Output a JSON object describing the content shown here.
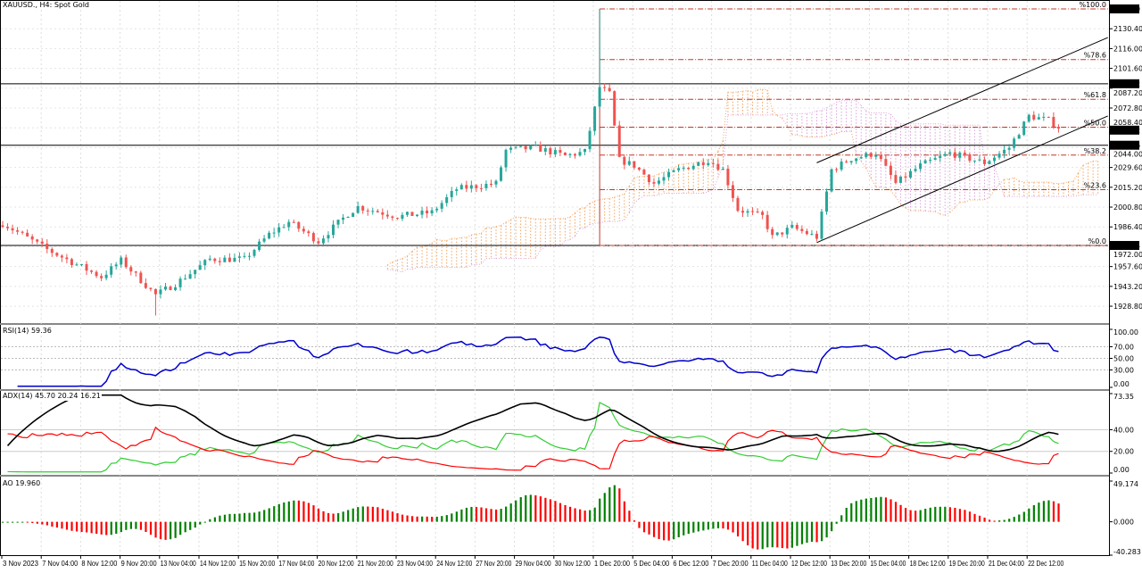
{
  "title": "XAUUSD., H4:  Spot Gold",
  "indicators": {
    "rsi_label": "RSI(14) 59.36",
    "adx_label": "ADX(14) 45.70 20.24 16.21",
    "ao_label": "AO 19.960"
  },
  "colors": {
    "bull": "#26a69a",
    "bear": "#ef5350",
    "fib": "#c0392b",
    "cloud_up": "#f4a460",
    "cloud_down": "#dda0dd",
    "rsi": "#0000cd",
    "adx": "#000000",
    "plus_di": "#32cd32",
    "minus_di": "#ff0000",
    "ao_up": "#008000",
    "ao_down": "#ff0000"
  },
  "chart_data": {
    "type": "candlestick",
    "symbol": "XAUUSD.",
    "timeframe": "H4",
    "ylim": [
      1914.4,
      2150
    ],
    "price_ticks": [
      "2130.40",
      "2116.00",
      "2101.60",
      "2087.20",
      "2072.80",
      "2058.40",
      "2044.00",
      "2029.60",
      "2015.20",
      "2000.80",
      "1986.40",
      "1972.00",
      "1957.60",
      "1943.20",
      "1928.80"
    ],
    "price_tags": [
      "2144.79",
      "2090.42",
      "2056.72",
      "2045.76",
      "1972.94"
    ],
    "horizontal_levels": [
      2090.42,
      2045.76,
      1972.94
    ],
    "current_price": 2056.72,
    "x_labels": [
      "3 Nov 2023",
      "7 Nov 04:00",
      "8 Nov 12:00",
      "9 Nov 20:00",
      "13 Nov 04:00",
      "14 Nov 12:00",
      "15 Nov 20:00",
      "17 Nov 04:00",
      "20 Nov 12:00",
      "21 Nov 20:00",
      "23 Nov 04:00",
      "24 Nov 12:00",
      "27 Nov 20:00",
      "29 Nov 04:00",
      "30 Nov 12:00",
      "1 Dec 20:00",
      "5 Dec 04:00",
      "6 Dec 12:00",
      "7 Dec 20:00",
      "11 Dec 04:00",
      "12 Dec 12:00",
      "13 Dec 20:00",
      "15 Dec 04:00",
      "18 Dec 12:00",
      "19 Dec 20:00",
      "21 Dec 04:00",
      "22 Dec 12:00"
    ],
    "bars_per_label": 8,
    "bar_count": 215,
    "price_path": [
      [
        0,
        1989
      ],
      [
        9,
        1970
      ],
      [
        20,
        1950
      ],
      [
        24,
        1962
      ],
      [
        31,
        1937
      ],
      [
        35,
        1945
      ],
      [
        42,
        1963
      ],
      [
        49,
        1963
      ],
      [
        54,
        1981
      ],
      [
        58,
        1990
      ],
      [
        64,
        1976
      ],
      [
        70,
        1996
      ],
      [
        72,
        2001
      ],
      [
        80,
        1994
      ],
      [
        87,
        1997
      ],
      [
        92,
        2014
      ],
      [
        100,
        2018
      ],
      [
        102,
        2042
      ],
      [
        108,
        2044
      ],
      [
        114,
        2038
      ],
      [
        118,
        2041
      ],
      [
        121,
        2088
      ],
      [
        123,
        2083
      ],
      [
        125,
        2035
      ],
      [
        128,
        2031
      ],
      [
        132,
        2018
      ],
      [
        137,
        2028
      ],
      [
        143,
        2035
      ],
      [
        146,
        2028
      ],
      [
        149,
        1999
      ],
      [
        154,
        1994
      ],
      [
        156,
        1979
      ],
      [
        160,
        1986
      ],
      [
        165,
        1979
      ],
      [
        168,
        2028
      ],
      [
        172,
        2036
      ],
      [
        177,
        2040
      ],
      [
        181,
        2018
      ],
      [
        186,
        2031
      ],
      [
        192,
        2040
      ],
      [
        199,
        2033
      ],
      [
        204,
        2044
      ],
      [
        208,
        2067
      ],
      [
        212,
        2064
      ],
      [
        214,
        2059
      ]
    ],
    "spike_high": {
      "bar": 121,
      "price": 2144.79
    },
    "fibonacci": {
      "from": 1972.94,
      "to": 2144.79,
      "start_bar": 121,
      "levels": [
        {
          "ratio": 1.0,
          "label": "%100.0"
        },
        {
          "ratio": 0.786,
          "label": "%78.6"
        },
        {
          "ratio": 0.618,
          "label": "%61.8"
        },
        {
          "ratio": 0.5,
          "label": "%50.0"
        },
        {
          "ratio": 0.382,
          "label": "%38.2"
        },
        {
          "ratio": 0.236,
          "label": "%23.6"
        },
        {
          "ratio": 0.0,
          "label": "%0.0"
        }
      ]
    },
    "channel": {
      "lower": [
        [
          165,
          1975
        ],
        [
          224,
          2067
        ]
      ],
      "upper": [
        [
          165,
          2033
        ],
        [
          224,
          2124
        ]
      ]
    },
    "ichimoku": {
      "tenkan": 9,
      "kijun": 26,
      "senkou_b": 52,
      "shift": 26
    },
    "rsi": {
      "period": 14,
      "ylim": [
        0,
        100
      ],
      "ticks": [
        "100.00",
        "70.00",
        "50.00",
        "30.00",
        "0.00"
      ],
      "levels": [
        70,
        50,
        30
      ]
    },
    "adx": {
      "period": 14,
      "ylim": [
        0,
        73.35
      ],
      "ticks": [
        "73.35",
        "40.00",
        "20.00",
        "0.00"
      ],
      "levels": [
        40,
        20
      ]
    },
    "ao": {
      "fast": 5,
      "slow": 34,
      "ylim": [
        -40.283,
        49.174
      ],
      "ticks": [
        "49.174",
        "0.000",
        "-40.283"
      ]
    }
  }
}
